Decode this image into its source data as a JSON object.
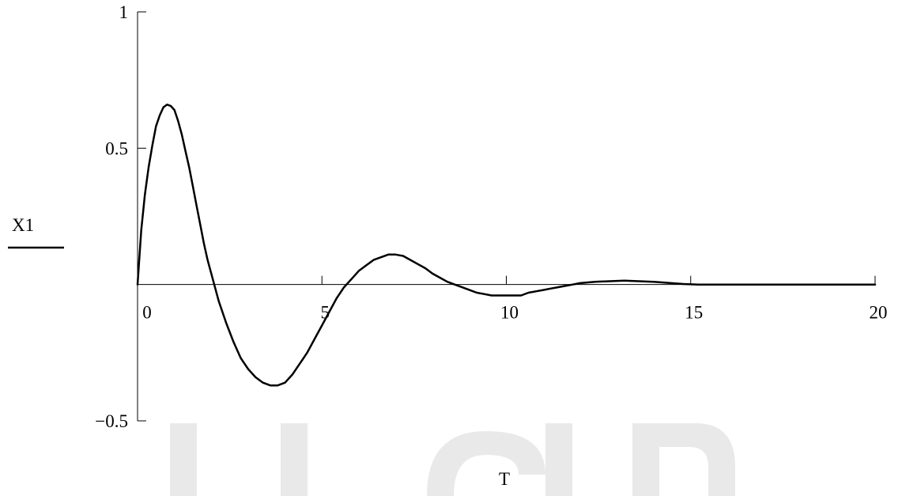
{
  "chart_data": {
    "type": "line",
    "title": "",
    "xlabel": "T",
    "ylabel": "",
    "xlim": [
      0,
      20
    ],
    "ylim": [
      -0.5,
      1
    ],
    "x_ticks": [
      0,
      5,
      10,
      15,
      20
    ],
    "y_ticks": [
      1,
      0.5,
      -0.5
    ],
    "x_tick_labels": [
      "0",
      "5",
      "10",
      "15",
      "20"
    ],
    "y_tick_labels": [
      "1",
      "0.5",
      "−0.5"
    ],
    "grid": false,
    "legend": {
      "placement": "left",
      "entries": [
        "X1"
      ]
    },
    "series": [
      {
        "name": "X1",
        "color": "#000000",
        "x": [
          0,
          0.1,
          0.2,
          0.3,
          0.4,
          0.5,
          0.6,
          0.7,
          0.8,
          0.9,
          1.0,
          1.1,
          1.2,
          1.3,
          1.4,
          1.5,
          1.6,
          1.7,
          1.8,
          1.9,
          2.0,
          2.2,
          2.4,
          2.6,
          2.8,
          3.0,
          3.2,
          3.4,
          3.6,
          3.8,
          4.0,
          4.2,
          4.4,
          4.6,
          4.8,
          5.0,
          5.2,
          5.4,
          5.6,
          5.8,
          6.0,
          6.2,
          6.4,
          6.6,
          6.8,
          7.0,
          7.2,
          7.4,
          7.6,
          7.8,
          8.0,
          8.2,
          8.4,
          8.6,
          8.8,
          9.0,
          9.2,
          9.4,
          9.6,
          9.8,
          10.0,
          10.2,
          10.4,
          10.6,
          10.8,
          11.0,
          11.2,
          11.4,
          11.6,
          11.8,
          12.0,
          12.4,
          12.8,
          13.2,
          13.6,
          14.0,
          14.4,
          14.8,
          15.2,
          15.6,
          16.0,
          16.5,
          17.0,
          17.5,
          18.0,
          18.5,
          19.0,
          19.5,
          20.0
        ],
        "values": [
          0,
          0.2,
          0.33,
          0.43,
          0.51,
          0.58,
          0.62,
          0.65,
          0.66,
          0.655,
          0.64,
          0.6,
          0.55,
          0.49,
          0.43,
          0.36,
          0.29,
          0.22,
          0.15,
          0.09,
          0.04,
          -0.06,
          -0.14,
          -0.21,
          -0.27,
          -0.31,
          -0.34,
          -0.36,
          -0.37,
          -0.37,
          -0.36,
          -0.33,
          -0.29,
          -0.25,
          -0.2,
          -0.15,
          -0.1,
          -0.05,
          -0.01,
          0.02,
          0.05,
          0.07,
          0.09,
          0.1,
          0.11,
          0.11,
          0.105,
          0.09,
          0.075,
          0.06,
          0.04,
          0.025,
          0.01,
          0.0,
          -0.01,
          -0.02,
          -0.03,
          -0.035,
          -0.04,
          -0.04,
          -0.04,
          -0.04,
          -0.04,
          -0.03,
          -0.025,
          -0.02,
          -0.015,
          -0.01,
          -0.005,
          0.0,
          0.005,
          0.01,
          0.012,
          0.014,
          0.012,
          0.01,
          0.006,
          0.002,
          0.0,
          0.0,
          0.0,
          0.0,
          0.0,
          0.0,
          0.0,
          0.0,
          0.0,
          0.0,
          0.0
        ]
      }
    ]
  }
}
